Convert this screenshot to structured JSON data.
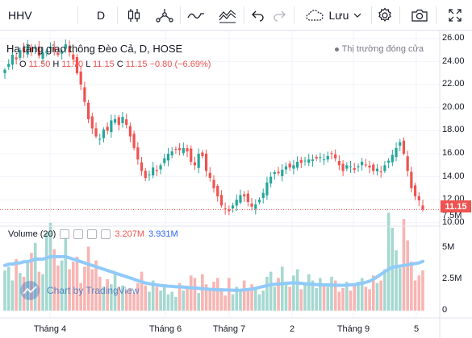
{
  "toolbar": {
    "symbol": "HHV",
    "interval": "D",
    "save_label": "Lưu",
    "icons": [
      "candles-icon",
      "indicators-icon",
      "line-icon",
      "compare-icon",
      "undo-icon",
      "redo-icon",
      "cloud-icon",
      "settings-icon",
      "camera-icon",
      "fullscreen-icon"
    ]
  },
  "legend": {
    "title": "Hạ tầng giao thông Đèo Cả, D, HOSE",
    "o_label": "O",
    "o_value": "11.50",
    "h_label": "H",
    "h_value": "11.70",
    "l_label": "L",
    "l_value": "11.15",
    "c_label": "C",
    "c_value": "11.15",
    "change": "−0.80 (−6.69%)",
    "market_status": "Thị trường đóng cửa"
  },
  "volume_legend": {
    "label": "Volume (20)",
    "vol": "3.207M",
    "ma": "3.931M"
  },
  "watermark": "Chart by TradingView",
  "price_tag": "11.15",
  "colors": {
    "up": "#26a69a",
    "down": "#ef5350",
    "ma": "#90caf9",
    "grid": "#f0f3fa"
  },
  "chart_data": {
    "type": "candlestick",
    "price_axis": [
      "26.00",
      "24.00",
      "22.00",
      "20.00",
      "18.00",
      "16.00",
      "14.00",
      "12.00",
      "10.00"
    ],
    "volume_axis": [
      "7.5M",
      "5M",
      "2.5M",
      "0"
    ],
    "time_axis": [
      "Tháng 4",
      "Tháng 6",
      "Tháng 7",
      "2",
      "Tháng 9",
      "5"
    ],
    "ylim": [
      10,
      26
    ],
    "close": [
      23.3,
      23.8,
      24.6,
      24.2,
      25.0,
      24.8,
      25.4,
      24.9,
      25.2,
      24.5,
      24.8,
      24.9,
      25.3,
      25.0,
      24.6,
      24.9,
      25.5,
      24.8,
      24.2,
      23.0,
      22.0,
      20.5,
      19.0,
      18.2,
      17.5,
      17.3,
      18.1,
      18.0,
      18.9,
      19.0,
      18.5,
      19.2,
      18.5,
      17.5,
      16.5,
      15.5,
      14.5,
      13.9,
      14.2,
      14.8,
      14.5,
      15.0,
      15.6,
      16.0,
      16.2,
      16.4,
      16.3,
      16.5,
      16.2,
      15.3,
      15.0,
      16.0,
      15.8,
      14.5,
      13.9,
      13.0,
      12.3,
      11.5,
      11.2,
      11.0,
      11.5,
      12.0,
      12.4,
      12.3,
      11.8,
      11.4,
      11.6,
      12.0,
      12.6,
      13.5,
      14.0,
      14.4,
      14.3,
      14.6,
      14.9,
      14.8,
      15.0,
      15.3,
      15.2,
      15.4,
      15.5,
      15.5,
      15.6,
      15.7,
      15.5,
      15.8,
      16.0,
      15.6,
      15.0,
      14.5,
      15.0,
      14.9,
      14.6,
      14.9,
      15.3,
      15.0,
      14.8,
      14.5,
      14.7,
      14.4,
      15.0,
      15.4,
      15.9,
      16.5,
      17.0,
      16.0,
      14.5,
      13.0,
      12.3,
      11.95,
      11.15
    ],
    "volume": [
      3.2,
      3.5,
      2.4,
      4.1,
      3.0,
      2.7,
      3.8,
      4.6,
      5.4,
      3.1,
      2.9,
      6.2,
      7.0,
      4.9,
      3.6,
      4.0,
      5.8,
      3.3,
      3.9,
      4.3,
      2.2,
      3.5,
      5.1,
      3.3,
      4.0,
      2.7,
      1.9,
      2.5,
      2.1,
      3.0,
      1.9,
      2.0,
      1.6,
      1.8,
      1.4,
      2.2,
      3.1,
      2.0,
      1.5,
      2.4,
      1.9,
      1.6,
      1.9,
      1.3,
      1.5,
      1.1,
      2.2,
      1.6,
      1.9,
      2.8,
      2.6,
      1.4,
      2.9,
      2.1,
      1.7,
      2.3,
      2.6,
      1.8,
      1.2,
      2.6,
      1.3,
      1.9,
      1.5,
      2.4,
      1.7,
      2.1,
      1.8,
      1.3,
      1.6,
      2.7,
      3.1,
      1.9,
      2.6,
      3.5,
      2.3,
      1.9,
      2.8,
      3.3,
      1.7,
      2.2,
      2.9,
      2.4,
      1.8,
      2.6,
      2.1,
      1.9,
      2.7,
      2.4,
      1.5,
      1.8,
      2.3,
      1.6,
      2.0,
      2.3,
      2.6,
      1.9,
      1.7,
      2.8,
      2.2,
      2.4,
      3.3,
      7.8,
      6.6,
      4.8,
      3.4,
      7.3,
      5.6,
      3.9,
      2.4,
      2.8,
      3.2
    ],
    "ma": [
      3.6,
      3.7,
      3.7,
      3.8,
      3.8,
      3.9,
      3.9,
      4.0,
      4.1,
      4.1,
      4.1,
      4.2,
      4.3,
      4.3,
      4.3,
      4.3,
      4.3,
      4.2,
      4.1,
      4.0,
      3.9,
      3.8,
      3.7,
      3.6,
      3.5,
      3.4,
      3.3,
      3.2,
      3.1,
      3.0,
      2.9,
      2.8,
      2.7,
      2.6,
      2.5,
      2.4,
      2.3,
      2.2,
      2.15,
      2.1,
      2.05,
      2.0,
      1.98,
      1.95,
      1.93,
      1.9,
      1.9,
      1.88,
      1.85,
      1.82,
      1.8,
      1.78,
      1.75,
      1.72,
      1.7,
      1.68,
      1.66,
      1.65,
      1.65,
      1.64,
      1.63,
      1.62,
      1.63,
      1.65,
      1.68,
      1.72,
      1.78,
      1.85,
      1.92,
      2.0,
      2.05,
      2.1,
      2.12,
      2.15,
      2.18,
      2.2,
      2.22,
      2.2,
      2.18,
      2.15,
      2.12,
      2.1,
      2.08,
      2.06,
      2.05,
      2.05,
      2.04,
      2.03,
      2.02,
      2.02,
      2.03,
      2.05,
      2.08,
      2.12,
      2.18,
      2.25,
      2.35,
      2.5,
      2.7,
      2.9,
      3.1,
      3.3,
      3.45,
      3.5,
      3.55,
      3.6,
      3.65,
      3.7,
      3.75,
      3.8,
      3.93
    ]
  }
}
